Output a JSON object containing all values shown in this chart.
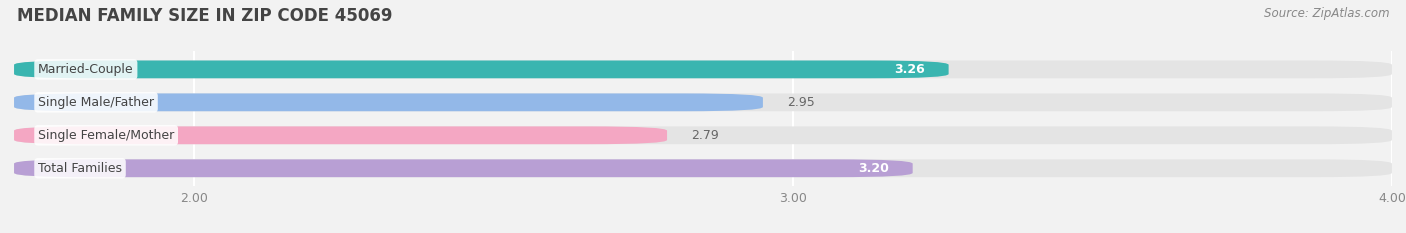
{
  "title": "MEDIAN FAMILY SIZE IN ZIP CODE 45069",
  "source": "Source: ZipAtlas.com",
  "categories": [
    "Married-Couple",
    "Single Male/Father",
    "Single Female/Mother",
    "Total Families"
  ],
  "values": [
    3.26,
    2.95,
    2.79,
    3.2
  ],
  "bar_colors": [
    "#3ab5b0",
    "#93b8e8",
    "#f4a7c3",
    "#b89fd4"
  ],
  "value_inside": [
    true,
    false,
    false,
    true
  ],
  "value_text_colors": [
    "white",
    "#666666",
    "#666666",
    "white"
  ],
  "xlim": [
    1.7,
    4.0
  ],
  "xticks": [
    2.0,
    3.0,
    4.0
  ],
  "xtick_labels": [
    "2.00",
    "3.00",
    "4.00"
  ],
  "background_color": "#f2f2f2",
  "bar_bg_color": "#e4e4e4",
  "bar_height": 0.54,
  "label_fontsize": 9.0,
  "value_fontsize": 9.0,
  "title_fontsize": 12,
  "source_fontsize": 8.5
}
